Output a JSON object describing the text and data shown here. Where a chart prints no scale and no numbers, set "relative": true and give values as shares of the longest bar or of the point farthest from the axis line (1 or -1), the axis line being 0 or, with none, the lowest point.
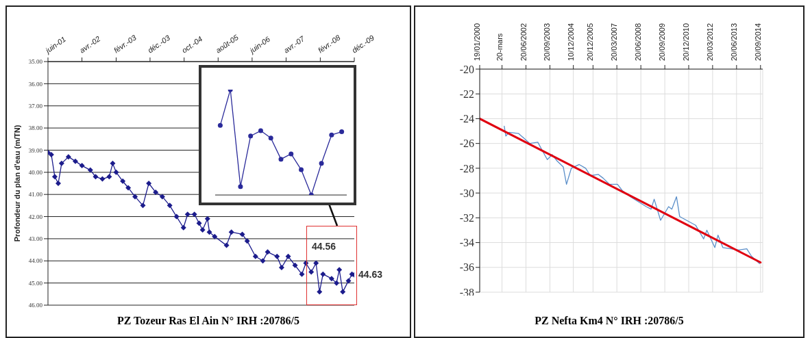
{
  "chart_data": [
    {
      "type": "line",
      "title": "PZ Tozeur Ras El Ain N° IRH :20786/5",
      "ylabel": "Profondeur du plan d'eau (m/TN)",
      "color": "#1c1c8c",
      "marker": "diamond",
      "grid": "y",
      "x": [
        "2001-06",
        "2001-07",
        "2001-08",
        "2001-09",
        "2001-10",
        "2001-12",
        "2002-02",
        "2002-04",
        "2002-06-15",
        "2002-08",
        "2002-10",
        "2002-12",
        "2003-01",
        "2003-02",
        "2003-04",
        "2003-05-20",
        "2003-07-20",
        "2003-09-28",
        "2003-11-20",
        "2004-01-20",
        "2004-03-20",
        "2004-05-25",
        "2004-07-25",
        "2004-09-25",
        "2004-11",
        "2005-01",
        "2005-02-12",
        "2005-03-15",
        "2005-04-28",
        "2005-05-15",
        "2005-07",
        "2005-10-15",
        "2005-11-28",
        "2006-03-05",
        "2006-04-18",
        "2006-07",
        "2006-09-05",
        "2006-10-18",
        "2007-01-10",
        "2007-02-20",
        "2007-04-20",
        "2007-06-20",
        "2007-08-20",
        "2007-09-25",
        "2007-11-12",
        "2007-12-25",
        "2008-01-25",
        "2008-02-25",
        "2008-05-12",
        "2008-06-25",
        "2008-07-20",
        "2008-08-20",
        "2008-10-10",
        "2008-11-10",
        "2008-12-01"
      ],
      "values": [
        39.1,
        39.2,
        40.2,
        40.5,
        39.6,
        39.3,
        39.5,
        39.7,
        39.9,
        40.2,
        40.3,
        40.2,
        39.6,
        40.0,
        40.4,
        40.7,
        41.1,
        41.5,
        40.5,
        40.9,
        41.1,
        41.5,
        42.0,
        42.5,
        41.9,
        41.9,
        42.3,
        42.6,
        42.1,
        42.7,
        42.9,
        43.3,
        42.7,
        42.8,
        43.1,
        43.8,
        44.0,
        43.6,
        43.8,
        44.3,
        43.8,
        44.2,
        44.6,
        44.1,
        44.5,
        44.1,
        45.4,
        44.6,
        44.8,
        45.0,
        44.4,
        45.4,
        44.9,
        44.6,
        44.63
      ],
      "xlim": [
        "2001-06-01",
        "2008-12-01"
      ],
      "xticks": [
        {
          "value": "2001-06-01",
          "label": "juin-01"
        },
        {
          "value": "2002-04-01",
          "label": "avr.-02"
        },
        {
          "value": "2003-02-01",
          "label": "févr.-03"
        },
        {
          "value": "2003-12-01",
          "label": "déc.-03"
        },
        {
          "value": "2004-10-01",
          "label": "oct.-04"
        },
        {
          "value": "2005-08-01",
          "label": "août-05"
        },
        {
          "value": "2006-06-01",
          "label": "juin-06"
        },
        {
          "value": "2007-04-01",
          "label": "avr.-07"
        },
        {
          "value": "2008-02-01",
          "label": "févr.-08"
        },
        {
          "value": "2008-12-01",
          "label": "déc.-09"
        }
      ],
      "ylim": [
        46,
        35
      ],
      "yticks": [
        {
          "value": 35,
          "label": "35.00"
        },
        {
          "value": 36,
          "label": "36.00"
        },
        {
          "value": 37,
          "label": "37.00"
        },
        {
          "value": 38,
          "label": "38.00"
        },
        {
          "value": 39,
          "label": "39.00"
        },
        {
          "value": 40,
          "label": "40.00"
        },
        {
          "value": 41,
          "label": "41.00"
        },
        {
          "value": 42,
          "label": "42.00"
        },
        {
          "value": 43,
          "label": "43.00"
        },
        {
          "value": 44,
          "label": "44.00"
        },
        {
          "value": 45,
          "label": "45.00"
        },
        {
          "value": 46,
          "label": "46.00"
        }
      ],
      "annotations": [
        "44.56",
        {
          "text": "44.63",
          "x": "2008-12-01",
          "y": 44.63
        }
      ]
    },
    {
      "type": "line",
      "relative": true,
      "color": "#2a2a9a",
      "marker": "circle",
      "tick_labels": false,
      "categories": [
        null,
        null,
        null,
        null,
        null,
        null,
        null,
        null,
        null,
        null,
        null,
        null,
        null
      ],
      "values": [
        0.66,
        1,
        0.08,
        0.56,
        0.61,
        0.54,
        0.34,
        0.39,
        0.24,
        0,
        0.3,
        0.57,
        0.6
      ]
    },
    {
      "type": "line",
      "title": "PZ Nefta Km4 N° IRH :20786/5",
      "grid": true,
      "marker": "none",
      "series": [
        {
          "color": "#5b8fc9",
          "x": [
            "2001-05",
            "2001-06",
            "2001-08",
            "2002-02",
            "2002-09",
            "2003-02",
            "2003-05",
            "2003-08",
            "2003-11",
            "2004-02",
            "2004-06",
            "2004-08",
            "2004-11",
            "2005-04",
            "2005-08",
            "2005-11",
            "2006-04",
            "2006-07",
            "2006-11",
            "2007-04",
            "2007-07",
            "2007-12",
            "2008-05",
            "2008-10",
            "2009-01",
            "2009-03",
            "2009-07",
            "2009-12",
            "2010-02",
            "2010-05",
            "2010-07",
            "2011-05",
            "2011-10",
            "2011-12",
            "2012-05",
            "2012-07",
            "2012-10",
            "2013-08",
            "2014-01",
            "2014-04",
            "2014-09"
          ],
          "values": [
            -24.6,
            -25.4,
            -25.1,
            -25.2,
            -26.0,
            -25.9,
            -26.6,
            -27.3,
            -26.9,
            -27.4,
            -27.9,
            -29.3,
            -28.0,
            -27.7,
            -28.0,
            -28.6,
            -28.5,
            -28.8,
            -29.3,
            -29.3,
            -29.8,
            -30.3,
            -30.7,
            -31.1,
            -31.3,
            -30.5,
            -32.2,
            -31.1,
            -31.3,
            -30.3,
            -31.9,
            -32.6,
            -33.7,
            -33.0,
            -34.4,
            -33.4,
            -34.4,
            -34.6,
            -34.5,
            -35.1,
            -35.7
          ]
        },
        {
          "type": "line",
          "color": "#e00010",
          "x": [
            "2000-01-19",
            "2014-09-20"
          ],
          "values": [
            -24,
            -35.6
          ]
        }
      ],
      "xlim": [
        "2000-01-19",
        "2014-11-01"
      ],
      "xticks": [
        {
          "value": "2000-01-19",
          "label": "19/01/2000"
        },
        {
          "value": "2001-03-20",
          "label": "20-mars"
        },
        {
          "value": "2002-06-20",
          "label": "20/06/2002"
        },
        {
          "value": "2003-09-20",
          "label": "20/09/2003"
        },
        {
          "value": "2004-12-10",
          "label": "10/12/2004"
        },
        {
          "value": "2005-12-20",
          "label": "20/12/2005"
        },
        {
          "value": "2007-03-20",
          "label": "20/03/2007"
        },
        {
          "value": "2008-06-20",
          "label": "20/06/2008"
        },
        {
          "value": "2009-09-20",
          "label": "20/09/2009"
        },
        {
          "value": "2010-12-20",
          "label": "20/12/2010"
        },
        {
          "value": "2012-03-20",
          "label": "20/03/2012"
        },
        {
          "value": "2013-06-20",
          "label": "20/06/2013"
        },
        {
          "value": "2014-09-20",
          "label": "20/09/2014"
        }
      ],
      "ylim": [
        -38,
        -20
      ],
      "yticks": [
        -38,
        -36,
        -34,
        -32,
        -30,
        -28,
        -26,
        -24,
        -22,
        -20
      ]
    }
  ]
}
